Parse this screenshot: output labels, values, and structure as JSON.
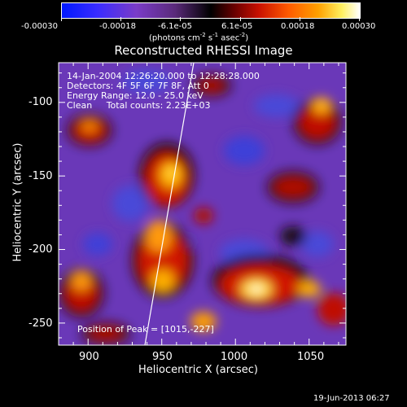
{
  "colorbar": {
    "ticks": [
      "-0.00030",
      "-0.00018",
      "-6.1e-05",
      "6.1e-05",
      "0.00018",
      "0.00030"
    ],
    "units_prefix": "(photons cm",
    "units_sup1": "-2",
    "units_mid": " s",
    "units_sup2": "-1",
    "units_mid2": " asec",
    "units_sup3": "-2",
    "units_suffix": ")"
  },
  "title": "Reconstructed RHESSI Image",
  "annotations": {
    "line1": "14-Jan-2004 12:26:20.000 to 12:28:28.000",
    "line2": "Detectors: 4F 5F 6F 7F 8F, Att 0",
    "line3": "Energy Range: 12.0 - 25.0 keV",
    "line4": "Clean     Total counts: 2.23E+03",
    "peak": "Position of Peak = [1015,-227]"
  },
  "axes": {
    "xlabel": "Heliocentric X (arcsec)",
    "ylabel": "Heliocentric Y (arcsec)",
    "xticks": [
      "900",
      "950",
      "1000",
      "1050"
    ],
    "yticks": [
      "-100",
      "-150",
      "-200",
      "-250"
    ]
  },
  "footer_timestamp": "19-Jun-2013 06:27",
  "colors": {
    "background": "#000000",
    "low": "#6a38b8",
    "mid": "#000000",
    "high": "#ff9a10"
  }
}
